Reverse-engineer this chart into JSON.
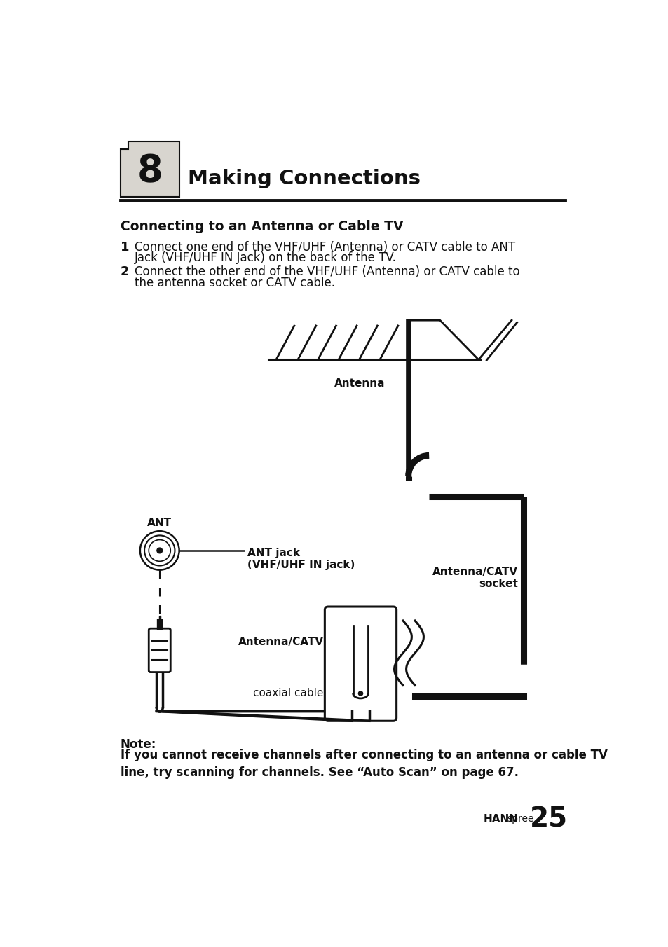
{
  "bg_color": "#ffffff",
  "page_title": "Making Connections",
  "chapter_num": "8",
  "section_title": "Connecting to an Antenna or Cable TV",
  "note_bold": "Note:",
  "note_text": "If you cannot receive channels after connecting to an antenna or cable TV\nline, try scanning for channels. See “Auto Scan” on page 67.",
  "footer_brand_bold": "HANN",
  "footer_brand_normal": "spree",
  "footer_page": "25",
  "label_antenna": "Antenna",
  "label_ant": "ANT",
  "label_ant_jack": "ANT jack\n(VHF/UHF IN jack)",
  "label_catv_socket": "Antenna/CATV\nsocket",
  "label_catv_cable": "Antenna/CATV",
  "label_coax": "coaxial cable"
}
